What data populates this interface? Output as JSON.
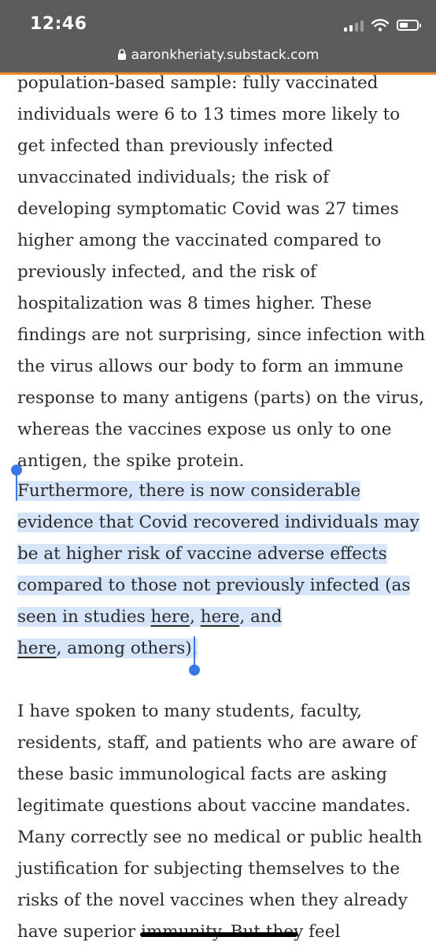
{
  "status_bar": {
    "time": "12:46",
    "signal_icon": "cellular-signal-icon",
    "wifi_icon": "wifi-icon",
    "battery_icon": "battery-icon"
  },
  "browser": {
    "url": "aaronkheriaty.substack.com",
    "lock_icon": "lock-icon",
    "progress_color": "#ee8a2a",
    "reading_progress": 1.0
  },
  "article": {
    "paragraph1": "population-based sample: fully vaccinated individuals were 6 to 13 times more likely to get infected than previously infected unvaccinated individuals; the risk of developing symptomatic Covid was 27 times higher among the vaccinated compared to previously infected, and the risk of hospitalization was 8 times higher. These findings are not surprising, since infection with the virus allows our body to form an immune response to many antigens (parts) on the virus, whereas the vaccines expose us only to one antigen, the spike protein.",
    "paragraph2": {
      "text_before_links": "Furthermore, there is now considerable evidence that Covid recovered individuals may be at higher risk of vaccine adverse effects compared to those not previously infected (as seen in studies ",
      "link1": "here",
      "sep1": ", ",
      "link2": "here",
      "sep2": ", and ",
      "link3": "here",
      "text_after_links": ", among others)."
    },
    "paragraph3": "I have spoken to many students, faculty, residents, staff, and patients who are aware of these basic immunological facts are asking legitimate questions about vaccine mandates. Many correctly see no medical or public health justification for subjecting themselves to the risks of the novel vaccines when they already have superior immunity. But they feel"
  },
  "selection": {
    "highlight_color": "#d7e5fa",
    "handle_color": "#3b78e7"
  }
}
